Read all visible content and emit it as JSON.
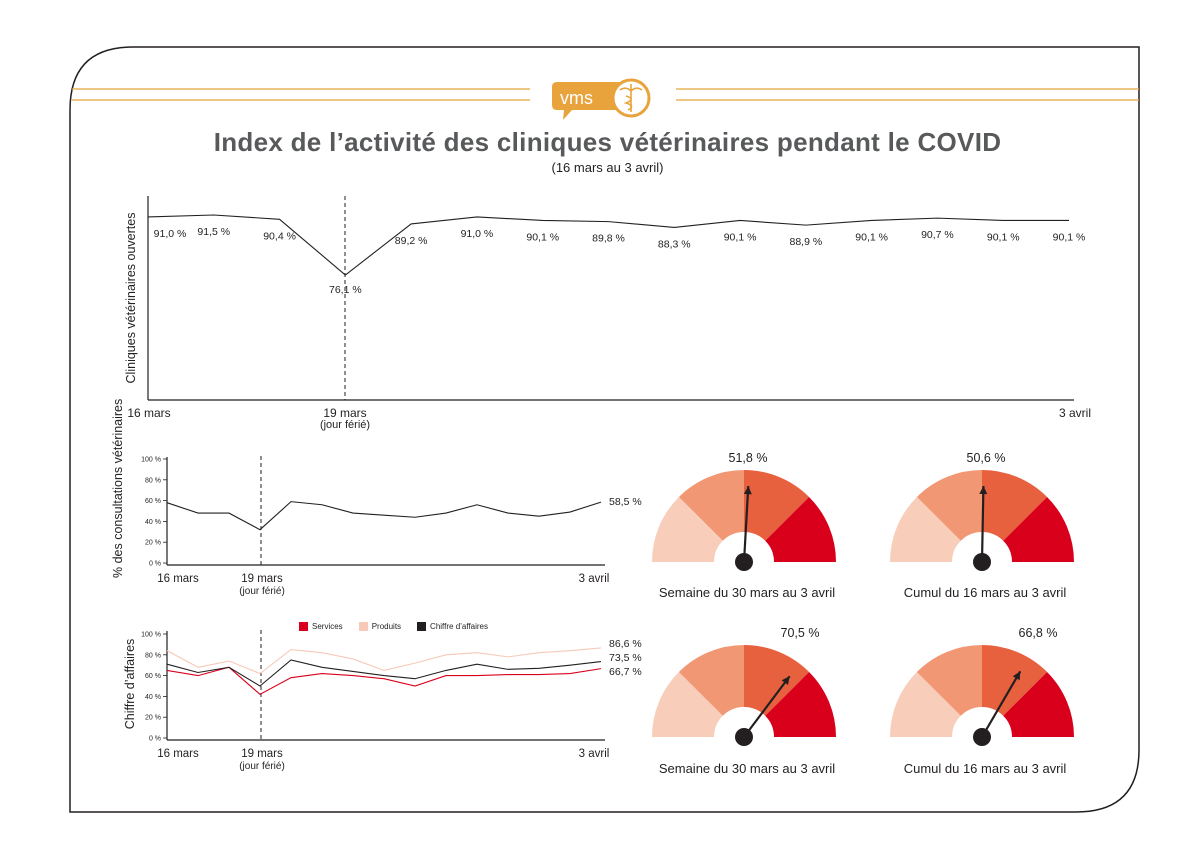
{
  "title": "Index de l’activité des cliniques vétérinaires pendant le COVID",
  "subtitle": "(16 mars au 3 avril)",
  "logo": {
    "text": "vms",
    "icon": "caduceus-icon",
    "color": "#e8a33c"
  },
  "colors": {
    "services": "#d9001b",
    "produits": "#f7c9b8",
    "ca": "#231f20",
    "gauge": [
      "#f8cdb9",
      "#f19774",
      "#e8613f",
      "#d9001b"
    ],
    "gold": "#e8a33c"
  },
  "chart_data": [
    {
      "type": "line",
      "ylabel": "Cliniques vétérinaires ouvertes",
      "x_labels": {
        "start": "16 mars",
        "mid": "19 mars",
        "mid_note": "(jour férié)",
        "end": "3 avril"
      },
      "values": [
        91.0,
        91.5,
        90.4,
        76.1,
        89.2,
        91.0,
        90.1,
        89.8,
        88.3,
        90.1,
        88.9,
        90.1,
        90.7,
        90.1,
        90.1
      ],
      "point_labels": [
        "91,0 %",
        "91,5 %",
        "90,4 %",
        "76,1 %",
        "89,2 %",
        "91,0 %",
        "90,1 %",
        "89,8 %",
        "88,3 %",
        "90,1 %",
        "88,9 %",
        "90,1 %",
        "90,7 %",
        "90,1 %",
        "90,1 %"
      ],
      "ylim": [
        0,
        100
      ]
    },
    {
      "type": "line",
      "ylabel": "% des consultations vétérinaires",
      "x_labels": {
        "start": "16 mars",
        "mid": "19 mars",
        "mid_note": "(jour férié)",
        "end": "3 avril"
      },
      "y_ticks": [
        "0 %",
        "20 %",
        "40 %",
        "60 %",
        "80 %",
        "100 %"
      ],
      "values": [
        58,
        48,
        48,
        32,
        59,
        56,
        48,
        46,
        44,
        48,
        56,
        48,
        45,
        49,
        58.5
      ],
      "end_label": "58,5 %",
      "ylim": [
        0,
        100
      ]
    },
    {
      "type": "line",
      "ylabel": "Chiffre d’affaires",
      "x_labels": {
        "start": "16 mars",
        "mid": "19 mars",
        "mid_note": "(jour férié)",
        "end": "3 avril"
      },
      "y_ticks": [
        "0 %",
        "20 %",
        "40 %",
        "60 %",
        "80 %",
        "100 %"
      ],
      "legend": [
        "Services",
        "Produits",
        "Chiffre d’affaires"
      ],
      "series": [
        {
          "name": "Services",
          "values": [
            65,
            60,
            68,
            42,
            58,
            62,
            60,
            57,
            50,
            60,
            60,
            61,
            61,
            62,
            66.7
          ],
          "end_label": "66,7 %"
        },
        {
          "name": "Produits",
          "values": [
            84,
            68,
            74,
            62,
            85,
            82,
            76,
            65,
            72,
            80,
            82,
            78,
            82,
            84,
            86.6
          ],
          "end_label": "86,6 %"
        },
        {
          "name": "Chiffre d’affaires",
          "values": [
            71,
            63,
            68,
            50,
            75,
            68,
            64,
            60,
            57,
            65,
            71,
            66,
            67,
            70,
            73.5
          ],
          "end_label": "73,5 %"
        }
      ],
      "ylim": [
        0,
        100
      ]
    },
    {
      "type": "gauge",
      "gauges": [
        {
          "value": 51.8,
          "label": "51,8 %",
          "caption": "Semaine du 30 mars au 3 avril"
        },
        {
          "value": 50.6,
          "label": "50,6 %",
          "caption": "Cumul du 16 mars au 3 avril"
        },
        {
          "value": 70.5,
          "label": "70,5 %",
          "caption": "Semaine du 30 mars au 3 avril"
        },
        {
          "value": 66.8,
          "label": "66,8 %",
          "caption": "Cumul du 16 mars au 3 avril"
        }
      ]
    }
  ]
}
